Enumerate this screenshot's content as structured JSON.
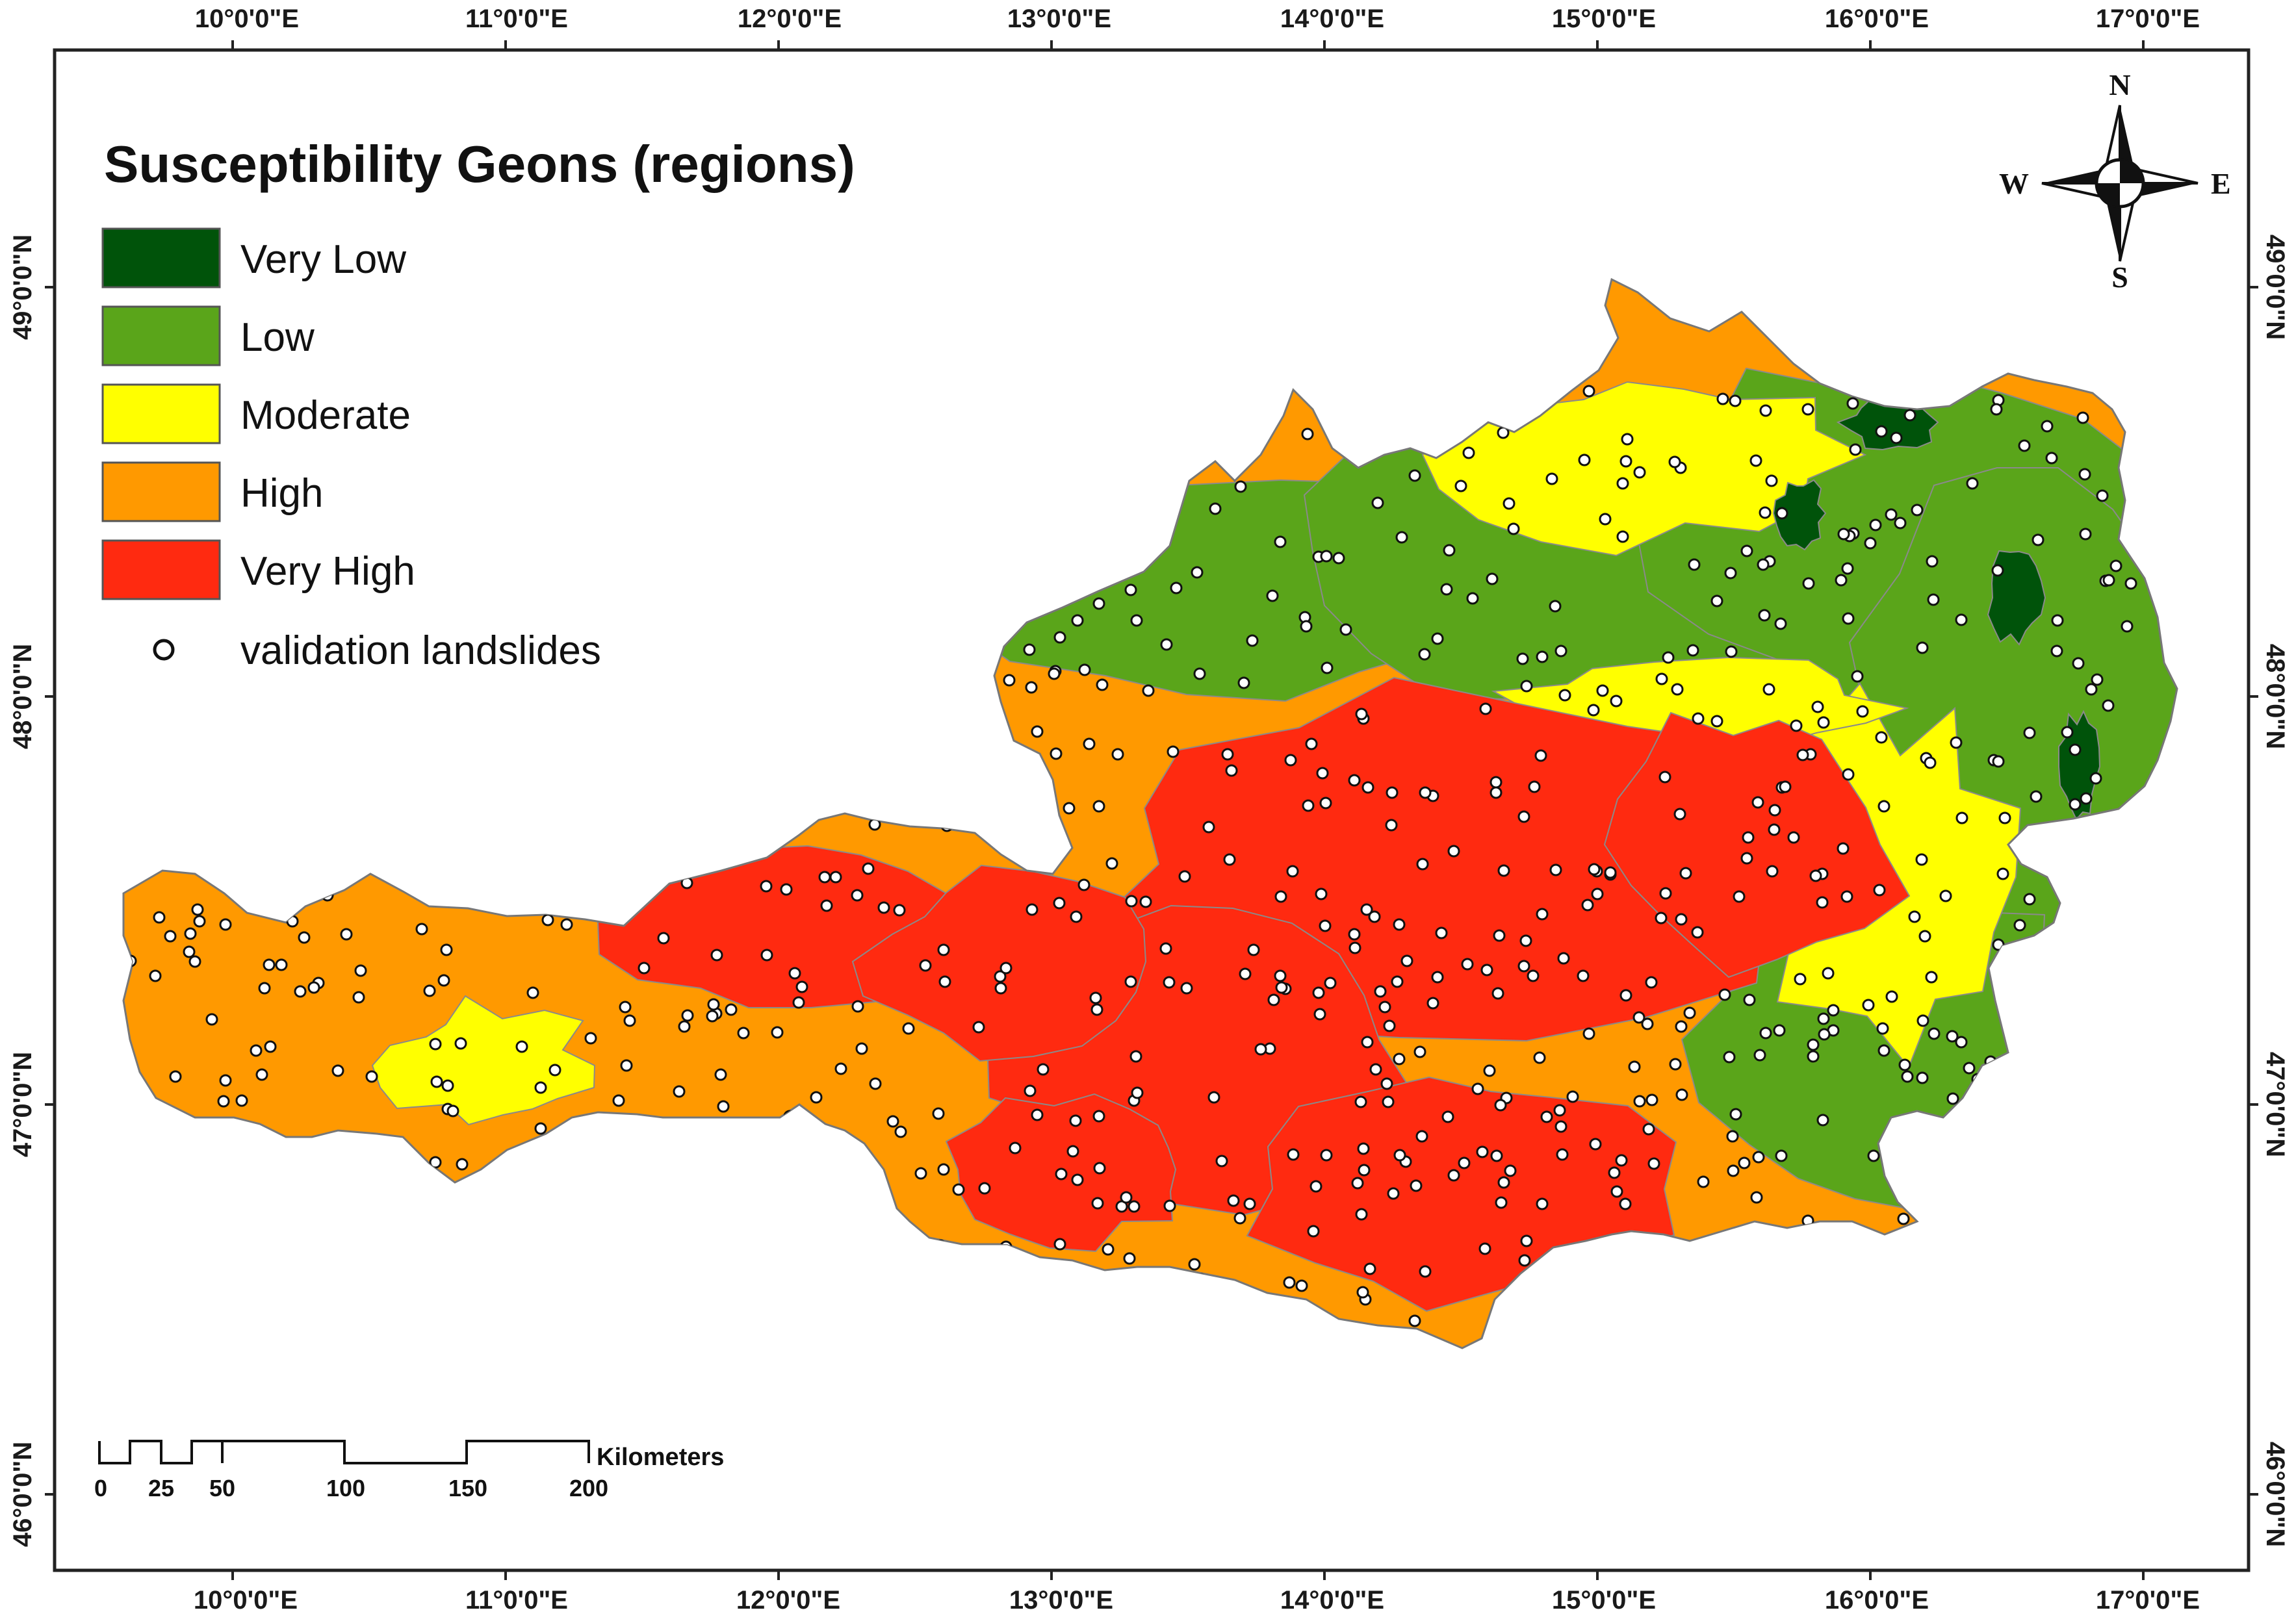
{
  "map": {
    "title": "Susceptibility Geons (regions)",
    "legend": [
      {
        "label": "Very Low",
        "color": "#00530a"
      },
      {
        "label": "Low",
        "color": "#5aa51a"
      },
      {
        "label": "Moderate",
        "color": "#ffff00"
      },
      {
        "label": "High",
        "color": "#ff9900"
      },
      {
        "label": "Very High",
        "color": "#ff2a10"
      }
    ],
    "points_label": "validation landslides",
    "longitude_ticks": [
      "10°0'0\"E",
      "11°0'0\"E",
      "12°0'0\"E",
      "13°0'0\"E",
      "14°0'0\"E",
      "15°0'0\"E",
      "16°0'0\"E",
      "17°0'0\"E"
    ],
    "latitude_ticks": [
      "49°0'0\"N",
      "48°0'0\"N",
      "47°0'0\"N",
      "46°0'0\"N"
    ],
    "compass": {
      "n": "N",
      "s": "S",
      "e": "E",
      "w": "W"
    },
    "scale_bar": {
      "labels": [
        "0",
        "25",
        "50",
        "100",
        "150",
        "200"
      ],
      "unit": "Kilometers"
    }
  }
}
